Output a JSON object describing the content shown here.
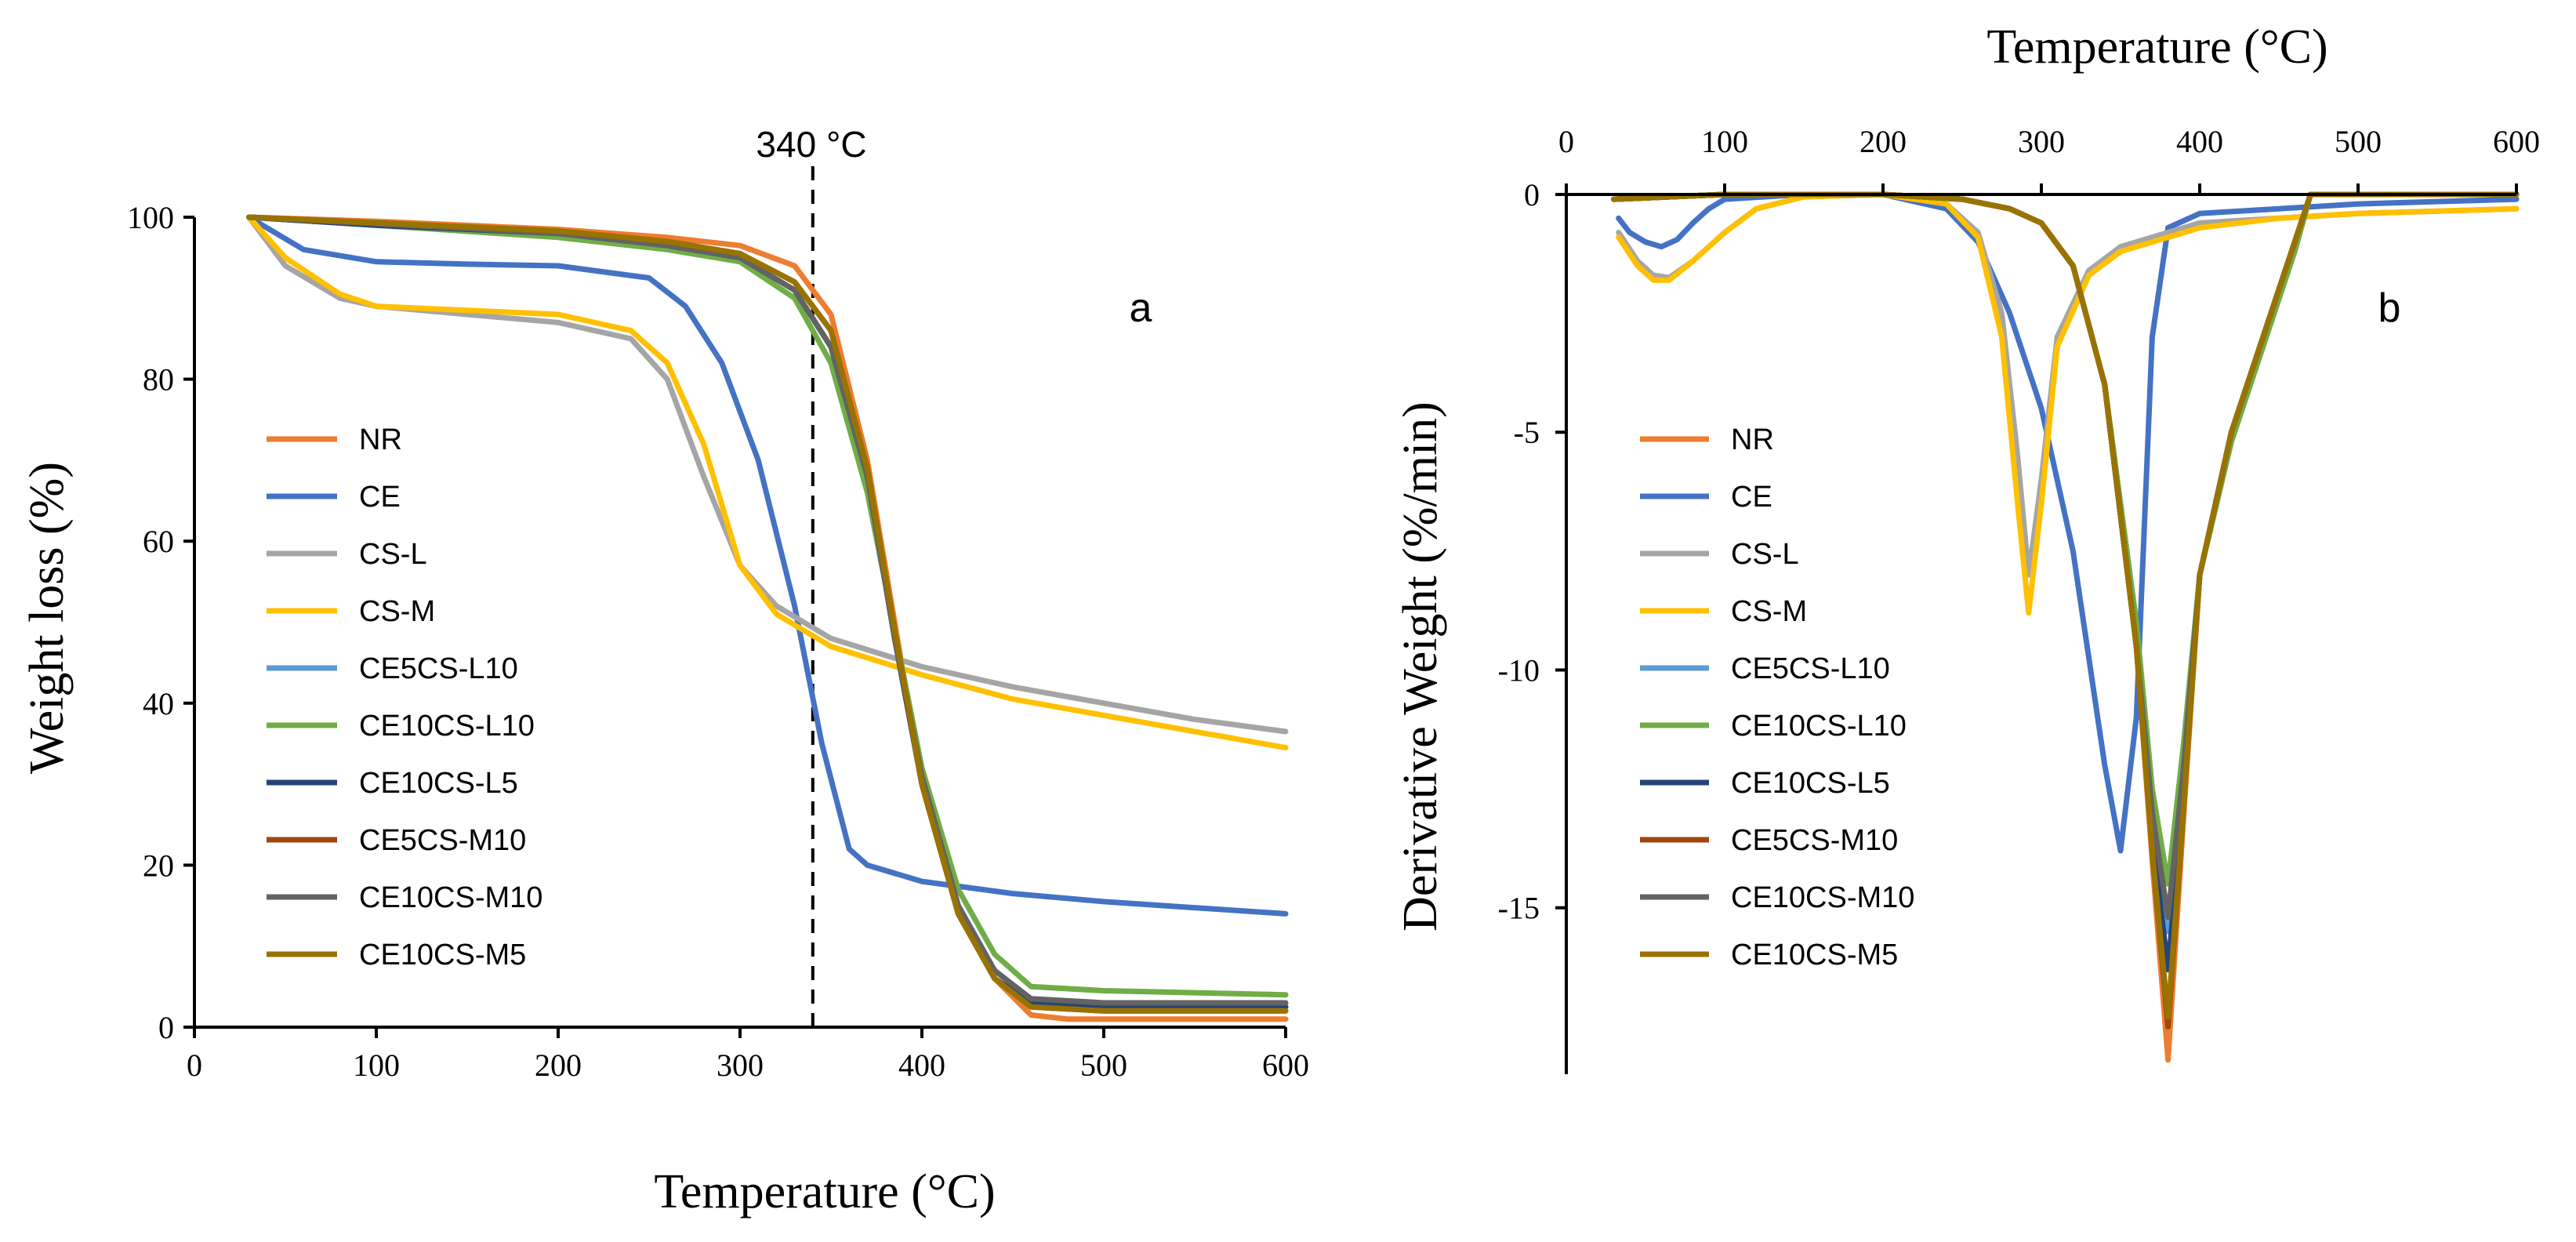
{
  "chart_data": [
    {
      "type": "line",
      "panel_label": "a",
      "annotation": "340 °C",
      "vline_x": 340,
      "xlabel": "Temperature (°C)",
      "ylabel": "Weight loss (%)",
      "xlim": [
        0,
        600
      ],
      "ylim": [
        0,
        100
      ],
      "xticks": [
        "0",
        "100",
        "200",
        "300",
        "400",
        "500",
        "600"
      ],
      "yticks": [
        "0",
        "20",
        "40",
        "60",
        "80",
        "100"
      ],
      "legend_position": "left-center",
      "series": [
        {
          "name": "NR",
          "color": "#ED7D31",
          "x": [
            30,
            100,
            200,
            260,
            300,
            330,
            350,
            370,
            385,
            400,
            420,
            440,
            460,
            480,
            520,
            600
          ],
          "y": [
            100,
            99.5,
            98.5,
            97.5,
            96.5,
            94,
            88,
            70,
            50,
            30,
            14,
            6,
            1.5,
            1,
            1,
            1
          ]
        },
        {
          "name": "CE",
          "color": "#4472C4",
          "x": [
            30,
            60,
            100,
            150,
            200,
            250,
            270,
            290,
            310,
            330,
            345,
            360,
            370,
            400,
            450,
            500,
            600
          ],
          "y": [
            100,
            96,
            94.5,
            94.2,
            94,
            92.5,
            89,
            82,
            70,
            52,
            35,
            22,
            20,
            18,
            16.5,
            15.5,
            14
          ]
        },
        {
          "name": "CS-L",
          "color": "#A5A5A5",
          "x": [
            30,
            50,
            80,
            100,
            150,
            200,
            240,
            260,
            280,
            300,
            320,
            350,
            400,
            450,
            500,
            550,
            600
          ],
          "y": [
            100,
            94,
            90,
            89,
            88,
            87,
            85,
            80,
            68,
            57,
            52,
            48,
            44.5,
            42,
            40,
            38,
            36.5
          ]
        },
        {
          "name": "CS-M",
          "color": "#FFC000",
          "x": [
            30,
            50,
            80,
            100,
            150,
            200,
            240,
            260,
            280,
            300,
            320,
            350,
            400,
            450,
            500,
            550,
            600
          ],
          "y": [
            100,
            95,
            90.5,
            89,
            88.5,
            88,
            86,
            82,
            72,
            57,
            51,
            47,
            43.5,
            40.5,
            38.5,
            36.5,
            34.5
          ]
        },
        {
          "name": "CE5CS-L10",
          "color": "#5B9BD5",
          "x": [
            30,
            100,
            200,
            260,
            300,
            330,
            350,
            370,
            385,
            400,
            420,
            440,
            460,
            500,
            600
          ],
          "y": [
            100,
            99,
            98,
            96.5,
            95,
            91,
            84,
            68,
            48,
            30,
            14,
            6,
            3,
            2.5,
            2.5
          ]
        },
        {
          "name": "CE10CS-L10",
          "color": "#70AD47",
          "x": [
            30,
            100,
            200,
            260,
            300,
            330,
            350,
            370,
            385,
            400,
            420,
            440,
            460,
            500,
            600
          ],
          "y": [
            100,
            99,
            97.5,
            96,
            94.5,
            90,
            82,
            66,
            49,
            32,
            17,
            9,
            5,
            4.5,
            4
          ]
        },
        {
          "name": "CE10CS-L5",
          "color": "#264478",
          "x": [
            30,
            100,
            200,
            260,
            300,
            330,
            350,
            370,
            385,
            400,
            420,
            440,
            460,
            500,
            600
          ],
          "y": [
            100,
            99,
            98,
            96.5,
            95,
            91,
            84,
            68,
            48,
            30,
            14,
            6,
            3,
            2.5,
            2.5
          ]
        },
        {
          "name": "CE5CS-M10",
          "color": "#9E480E",
          "x": [
            30,
            100,
            200,
            260,
            300,
            330,
            350,
            370,
            385,
            400,
            420,
            440,
            460,
            500,
            600
          ],
          "y": [
            100,
            99.3,
            98.3,
            97,
            95.5,
            92,
            86,
            69,
            49,
            30,
            14,
            6,
            2.5,
            2,
            2
          ]
        },
        {
          "name": "CE10CS-M10",
          "color": "#636363",
          "x": [
            30,
            100,
            200,
            260,
            300,
            330,
            350,
            370,
            385,
            400,
            420,
            440,
            460,
            500,
            600
          ],
          "y": [
            100,
            99.2,
            98,
            96.5,
            95,
            91,
            84,
            68,
            48,
            31,
            15,
            7,
            3.5,
            3,
            3
          ]
        },
        {
          "name": "CE10CS-M5",
          "color": "#997300",
          "x": [
            30,
            100,
            200,
            260,
            300,
            330,
            350,
            370,
            385,
            400,
            420,
            440,
            460,
            500,
            600
          ],
          "y": [
            100,
            99.3,
            98.3,
            97,
            95.5,
            92,
            86,
            69,
            49,
            30,
            14,
            6,
            2.5,
            2,
            2
          ]
        }
      ]
    },
    {
      "type": "line",
      "panel_label": "b",
      "xlabel": "Temperature (°C)",
      "ylabel": "Derivative Weight (%/min)",
      "xlim": [
        0,
        600
      ],
      "ylim": [
        -18.5,
        0
      ],
      "xticks": [
        "0",
        "100",
        "200",
        "300",
        "400",
        "500",
        "600"
      ],
      "yticks": [
        "0",
        "-5",
        "-10",
        "-15"
      ],
      "legend_position": "left-center",
      "series": [
        {
          "name": "NR",
          "color": "#ED7D31",
          "x": [
            30,
            100,
            200,
            250,
            280,
            300,
            320,
            340,
            360,
            370,
            380,
            390,
            400,
            420,
            440,
            460,
            470,
            600
          ],
          "y": [
            -0.1,
            0,
            0,
            -0.1,
            -0.3,
            -0.6,
            -1.5,
            -4,
            -9.5,
            -14,
            -18.2,
            -13,
            -8,
            -5,
            -3,
            -1,
            0,
            0
          ]
        },
        {
          "name": "CE",
          "color": "#4472C4",
          "x": [
            33,
            40,
            50,
            60,
            70,
            80,
            90,
            100,
            150,
            200,
            240,
            260,
            280,
            300,
            320,
            340,
            350,
            360,
            370,
            380,
            400,
            450,
            500,
            600
          ],
          "y": [
            -0.5,
            -0.8,
            -1,
            -1.1,
            -0.95,
            -0.6,
            -0.3,
            -0.1,
            0,
            0,
            -0.3,
            -1,
            -2.5,
            -4.5,
            -7.5,
            -12,
            -13.8,
            -11,
            -3,
            -0.7,
            -0.4,
            -0.3,
            -0.2,
            -0.1
          ]
        },
        {
          "name": "CS-L",
          "color": "#A5A5A5",
          "x": [
            33,
            45,
            55,
            65,
            80,
            100,
            120,
            150,
            200,
            240,
            260,
            275,
            285,
            292,
            300,
            310,
            330,
            350,
            380,
            400,
            450,
            500,
            600
          ],
          "y": [
            -0.8,
            -1.4,
            -1.7,
            -1.75,
            -1.4,
            -0.8,
            -0.3,
            -0.05,
            0,
            -0.2,
            -0.8,
            -2.5,
            -5.5,
            -8,
            -6,
            -3,
            -1.6,
            -1.1,
            -0.8,
            -0.6,
            -0.5,
            -0.4,
            -0.3
          ]
        },
        {
          "name": "CS-M",
          "color": "#FFC000",
          "x": [
            33,
            45,
            55,
            65,
            80,
            100,
            120,
            150,
            200,
            240,
            260,
            275,
            285,
            292,
            300,
            310,
            330,
            350,
            380,
            400,
            450,
            500,
            600
          ],
          "y": [
            -0.9,
            -1.5,
            -1.8,
            -1.8,
            -1.4,
            -0.8,
            -0.3,
            -0.05,
            0,
            -0.2,
            -0.9,
            -3,
            -6.5,
            -8.8,
            -6.5,
            -3.2,
            -1.7,
            -1.2,
            -0.9,
            -0.7,
            -0.5,
            -0.4,
            -0.3
          ]
        },
        {
          "name": "CE5CS-L10",
          "color": "#5B9BD5",
          "x": [
            30,
            100,
            200,
            250,
            280,
            300,
            320,
            340,
            360,
            370,
            380,
            390,
            400,
            420,
            440,
            460,
            470,
            600
          ],
          "y": [
            -0.1,
            0,
            0,
            -0.1,
            -0.3,
            -0.6,
            -1.5,
            -4,
            -9.5,
            -13,
            -15.5,
            -12,
            -8,
            -5,
            -3,
            -1,
            0,
            0
          ]
        },
        {
          "name": "CE10CS-L10",
          "color": "#70AD47",
          "x": [
            30,
            100,
            200,
            250,
            280,
            300,
            320,
            340,
            360,
            370,
            380,
            390,
            400,
            420,
            440,
            460,
            470,
            600
          ],
          "y": [
            -0.1,
            0,
            0,
            -0.1,
            -0.3,
            -0.6,
            -1.5,
            -4,
            -9,
            -12.5,
            -14.5,
            -11.5,
            -8,
            -5.2,
            -3.2,
            -1.2,
            0,
            0
          ]
        },
        {
          "name": "CE10CS-L5",
          "color": "#264478",
          "x": [
            30,
            100,
            200,
            250,
            280,
            300,
            320,
            340,
            360,
            370,
            380,
            390,
            400,
            420,
            440,
            460,
            470,
            600
          ],
          "y": [
            -0.1,
            0,
            0,
            -0.1,
            -0.3,
            -0.6,
            -1.5,
            -4,
            -9.5,
            -13.5,
            -16.3,
            -12.5,
            -8,
            -5,
            -3,
            -1,
            0,
            0
          ]
        },
        {
          "name": "CE5CS-M10",
          "color": "#9E480E",
          "x": [
            30,
            100,
            200,
            250,
            280,
            300,
            320,
            340,
            360,
            370,
            380,
            390,
            400,
            420,
            440,
            460,
            470,
            600
          ],
          "y": [
            -0.1,
            0,
            0,
            -0.1,
            -0.3,
            -0.6,
            -1.5,
            -4,
            -9.5,
            -13.8,
            -17.5,
            -12.8,
            -8,
            -5,
            -3,
            -1,
            0,
            0
          ]
        },
        {
          "name": "CE10CS-M10",
          "color": "#636363",
          "x": [
            30,
            100,
            200,
            250,
            280,
            300,
            320,
            340,
            360,
            370,
            380,
            390,
            400,
            420,
            440,
            460,
            470,
            600
          ],
          "y": [
            -0.1,
            0,
            0,
            -0.1,
            -0.3,
            -0.6,
            -1.5,
            -4,
            -9.5,
            -13,
            -15.2,
            -12,
            -8,
            -5,
            -3,
            -1,
            0,
            0
          ]
        },
        {
          "name": "CE10CS-M5",
          "color": "#997300",
          "x": [
            30,
            100,
            200,
            250,
            280,
            300,
            320,
            340,
            360,
            370,
            380,
            390,
            400,
            420,
            440,
            460,
            470,
            600
          ],
          "y": [
            -0.1,
            0,
            0,
            -0.1,
            -0.3,
            -0.6,
            -1.5,
            -4,
            -9.5,
            -13.8,
            -17.3,
            -12.8,
            -8,
            -5,
            -3,
            -1,
            0,
            0
          ]
        }
      ]
    }
  ]
}
